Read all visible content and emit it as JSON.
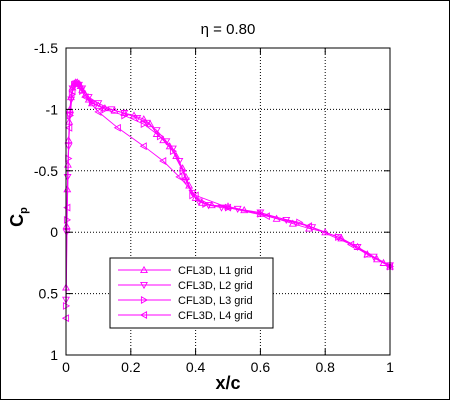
{
  "chart_data": {
    "type": "line",
    "title": "η = 0.80",
    "xlabel": "x/c",
    "ylabel_main": "C",
    "ylabel_sub": "p",
    "xlim": [
      0,
      1
    ],
    "ylim": [
      1,
      -1.5
    ],
    "y_inverted": true,
    "grid": true,
    "x_ticks": [
      0,
      0.2,
      0.4,
      0.6,
      0.8,
      1
    ],
    "x_tick_labels": [
      "0",
      "0.2",
      "0.4",
      "0.6",
      "0.8",
      "1"
    ],
    "y_ticks": [
      -1.5,
      -1,
      -0.5,
      0,
      0.5,
      1
    ],
    "y_tick_labels": [
      "-1.5",
      "-1",
      "-0.5",
      "0",
      "0.5",
      "1"
    ],
    "legend_position": "bottom-left",
    "color": "#ff00ff",
    "series": [
      {
        "name": "CFL3D, L1 grid",
        "marker": "triangle-up",
        "x": [
          0.0,
          0.002,
          0.004,
          0.006,
          0.008,
          0.01,
          0.012,
          0.015,
          0.02,
          0.025,
          0.03,
          0.035,
          0.04,
          0.045,
          0.05,
          0.06,
          0.07,
          0.08,
          0.1,
          0.12,
          0.15,
          0.18,
          0.21,
          0.24,
          0.26,
          0.28,
          0.3,
          0.32,
          0.34,
          0.36,
          0.37,
          0.38,
          0.4,
          0.42,
          0.45,
          0.5,
          0.55,
          0.6,
          0.65,
          0.7,
          0.75,
          0.8,
          0.85,
          0.9,
          0.93,
          0.96,
          0.98,
          1.0
        ],
        "y": [
          0.45,
          -0.05,
          -0.35,
          -0.55,
          -0.75,
          -0.9,
          -1.0,
          -1.1,
          -1.18,
          -1.21,
          -1.22,
          -1.22,
          -1.21,
          -1.19,
          -1.16,
          -1.12,
          -1.08,
          -1.05,
          -1.03,
          -1.01,
          -0.99,
          -0.97,
          -0.95,
          -0.92,
          -0.88,
          -0.8,
          -0.75,
          -0.7,
          -0.62,
          -0.52,
          -0.45,
          -0.38,
          -0.28,
          -0.24,
          -0.22,
          -0.21,
          -0.18,
          -0.15,
          -0.11,
          -0.07,
          -0.03,
          0.0,
          0.05,
          0.12,
          0.18,
          0.22,
          0.25,
          0.28
        ]
      },
      {
        "name": "CFL3D, L2 grid",
        "marker": "triangle-down",
        "x": [
          0.0,
          0.002,
          0.005,
          0.008,
          0.012,
          0.016,
          0.02,
          0.03,
          0.04,
          0.05,
          0.07,
          0.1,
          0.14,
          0.18,
          0.22,
          0.25,
          0.28,
          0.31,
          0.33,
          0.35,
          0.37,
          0.39,
          0.41,
          0.44,
          0.48,
          0.53,
          0.6,
          0.68,
          0.76,
          0.84,
          0.9,
          0.95,
          1.0
        ],
        "y": [
          0.55,
          0.0,
          -0.45,
          -0.7,
          -0.95,
          -1.08,
          -1.17,
          -1.21,
          -1.2,
          -1.17,
          -1.1,
          -1.05,
          -1.0,
          -0.97,
          -0.93,
          -0.89,
          -0.83,
          -0.74,
          -0.68,
          -0.58,
          -0.42,
          -0.32,
          -0.25,
          -0.22,
          -0.2,
          -0.19,
          -0.16,
          -0.1,
          -0.04,
          0.04,
          0.12,
          0.2,
          0.27
        ]
      },
      {
        "name": "CFL3D, L3 grid",
        "marker": "triangle-right",
        "x": [
          0.0,
          0.003,
          0.007,
          0.012,
          0.018,
          0.025,
          0.035,
          0.05,
          0.08,
          0.12,
          0.18,
          0.24,
          0.29,
          0.33,
          0.36,
          0.39,
          0.43,
          0.5,
          0.6,
          0.72,
          0.84,
          0.93,
          1.0
        ],
        "y": [
          0.6,
          -0.1,
          -0.6,
          -0.95,
          -1.12,
          -1.2,
          -1.21,
          -1.15,
          -1.06,
          -1.0,
          -0.95,
          -0.88,
          -0.78,
          -0.66,
          -0.5,
          -0.3,
          -0.23,
          -0.2,
          -0.15,
          -0.08,
          0.04,
          0.18,
          0.28
        ]
      },
      {
        "name": "CFL3D, L4 grid",
        "marker": "triangle-left",
        "x": [
          0.0,
          0.004,
          0.01,
          0.02,
          0.035,
          0.06,
          0.1,
          0.16,
          0.24,
          0.3,
          0.35,
          0.4,
          0.5,
          0.62,
          0.75,
          0.88,
          1.0
        ],
        "y": [
          0.7,
          -0.2,
          -0.85,
          -1.15,
          -1.2,
          -1.1,
          -0.98,
          -0.85,
          -0.7,
          -0.58,
          -0.45,
          -0.3,
          -0.2,
          -0.13,
          -0.05,
          0.1,
          0.28
        ]
      }
    ]
  }
}
